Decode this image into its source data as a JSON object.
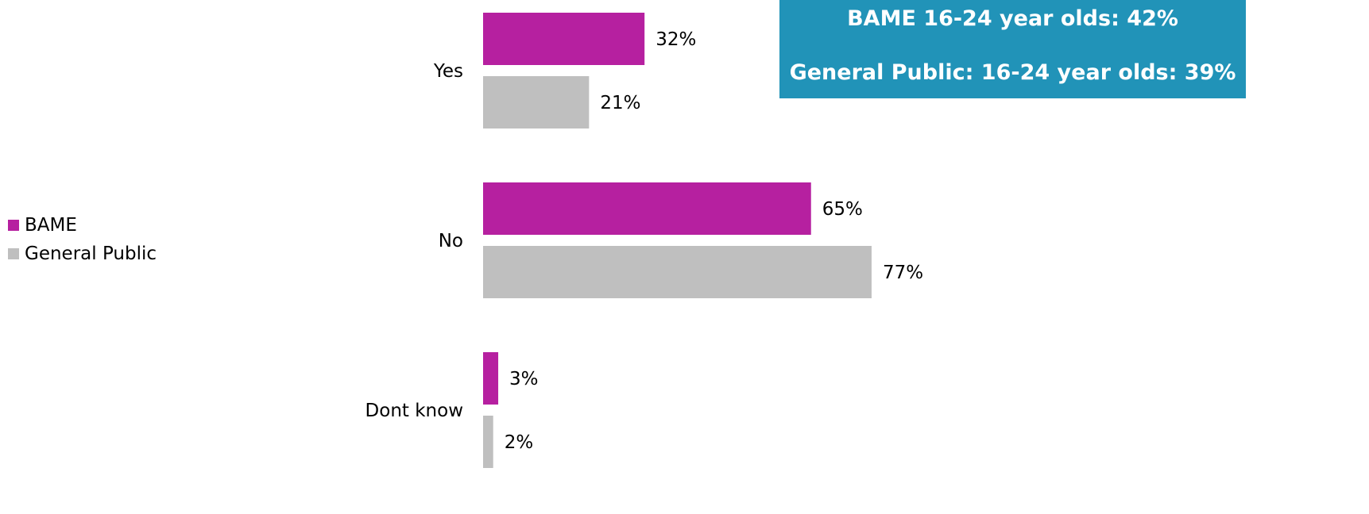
{
  "chart_data": {
    "type": "bar",
    "orientation": "horizontal",
    "categories": [
      "Yes",
      "No",
      "Dont know"
    ],
    "series": [
      {
        "name": "BAME",
        "values": [
          32,
          65,
          3
        ],
        "color": "#b620a0"
      },
      {
        "name": "General Public",
        "values": [
          21,
          77,
          2
        ],
        "color": "#bfbfbf"
      }
    ],
    "value_labels": {
      "BAME": [
        "32%",
        "65%",
        "3%"
      ],
      "General Public": [
        "21%",
        "77%",
        "2%"
      ]
    },
    "title": "",
    "xlabel": "",
    "ylabel": "",
    "xlim": [
      0,
      100
    ],
    "grid": false,
    "legend": "left"
  },
  "legend": {
    "items": [
      {
        "label": "BAME",
        "color": "#b620a0"
      },
      {
        "label": "General Public",
        "color": "#bfbfbf"
      }
    ]
  },
  "callout": {
    "line1": "BAME 16-24 year olds: 42%",
    "line2": "General Public: 16-24 year olds:  39%",
    "background": "#2193b8"
  }
}
